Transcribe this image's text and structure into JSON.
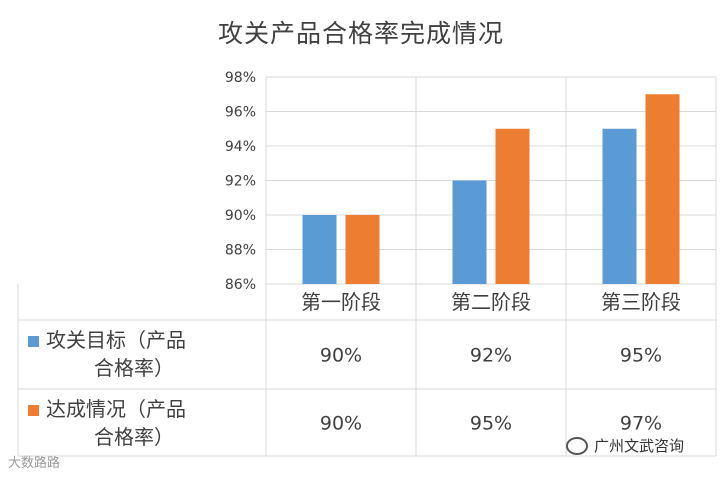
{
  "chart_data": {
    "type": "bar",
    "title": "攻关产品合格率完成情况",
    "categories": [
      "第一阶段",
      "第二阶段",
      "第三阶段"
    ],
    "series": [
      {
        "name": "攻关目标（产品合格率）",
        "color": "#5b9bd5",
        "values": [
          90,
          92,
          95
        ],
        "value_labels": [
          "90%",
          "92%",
          "95%"
        ]
      },
      {
        "name": "达成情况（产品合格率）",
        "color": "#ed7d31",
        "values": [
          90,
          95,
          97
        ],
        "value_labels": [
          "90%",
          "95%",
          "97%"
        ]
      }
    ],
    "ylim": [
      86,
      98
    ],
    "yticks": [
      86,
      88,
      90,
      92,
      94,
      96,
      98
    ],
    "ytick_labels": [
      "86%",
      "88%",
      "90%",
      "92%",
      "94%",
      "96%",
      "98%"
    ],
    "grid": true,
    "data_table": true
  },
  "watermarks": {
    "left": "大数路路",
    "right": "广州文武咨询"
  }
}
